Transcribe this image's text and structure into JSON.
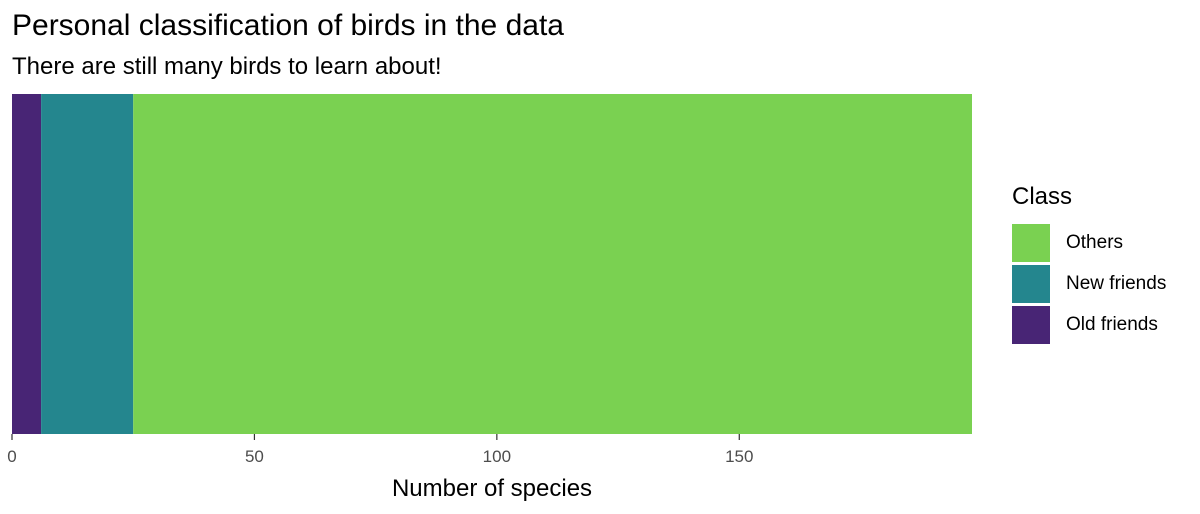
{
  "chart_data": {
    "type": "bar",
    "orientation": "horizontal",
    "stacked": true,
    "title": "Personal classification of birds in the data",
    "subtitle": "There are still many birds to learn about!",
    "xlabel": "Number of species",
    "ylabel": "",
    "xlim": [
      0,
      198
    ],
    "x_ticks": [
      0,
      50,
      100,
      150
    ],
    "x_tick_labels": [
      "0",
      "50",
      "100",
      "150"
    ],
    "grid": false,
    "legend": {
      "title": "Class",
      "position": "right",
      "entries": [
        {
          "label": "Others",
          "color": "#7AD151"
        },
        {
          "label": "New friends",
          "color": "#24868E"
        },
        {
          "label": "Old friends",
          "color": "#482575"
        }
      ]
    },
    "series": [
      {
        "name": "Old friends",
        "value": 6,
        "color": "#482575"
      },
      {
        "name": "New friends",
        "value": 19,
        "color": "#24868E"
      },
      {
        "name": "Others",
        "value": 173,
        "color": "#7AD151"
      }
    ]
  }
}
